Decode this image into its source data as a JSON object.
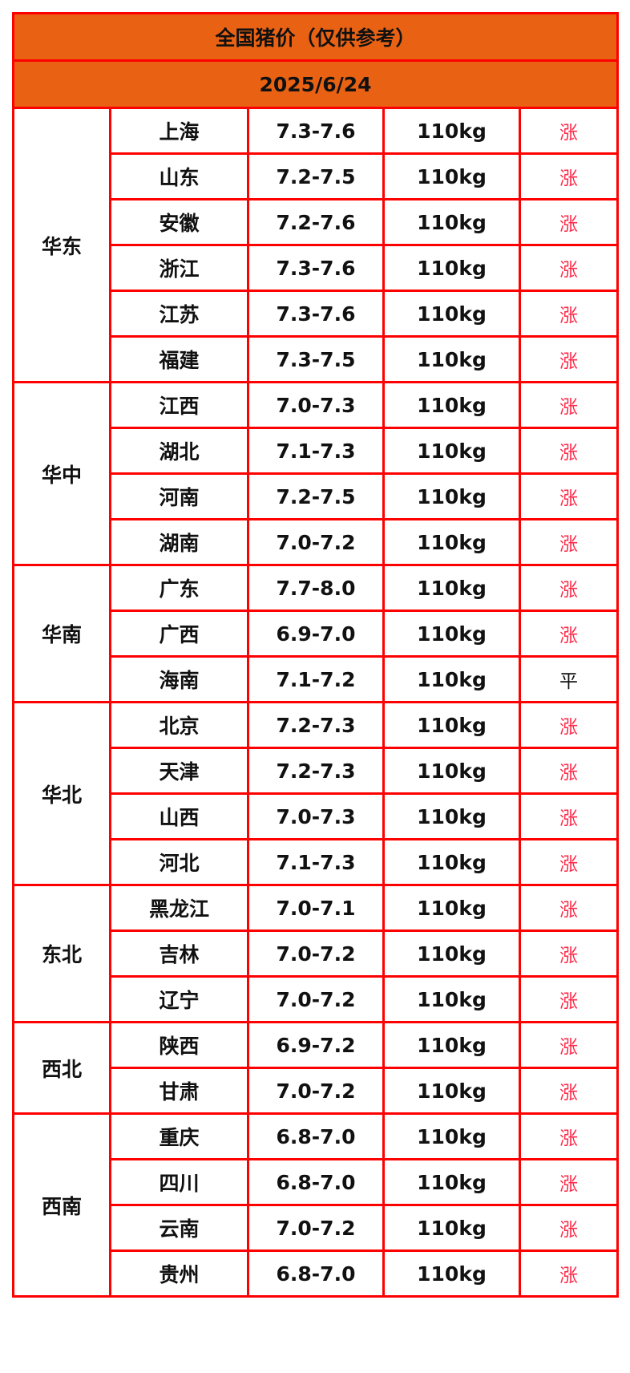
{
  "title": "全国猪价（仅供参考）",
  "date": "2025/6/24",
  "colors": {
    "header_bg": "#e96214",
    "border": "#ff0000",
    "up": "#ff2a4a"
  },
  "regions": [
    {
      "name": "华东",
      "rows": [
        {
          "province": "上海",
          "price": "7.3-7.6",
          "weight": "110kg",
          "trend": "涨"
        },
        {
          "province": "山东",
          "price": "7.2-7.5",
          "weight": "110kg",
          "trend": "涨"
        },
        {
          "province": "安徽",
          "price": "7.2-7.6",
          "weight": "110kg",
          "trend": "涨"
        },
        {
          "province": "浙江",
          "price": "7.3-7.6",
          "weight": "110kg",
          "trend": "涨"
        },
        {
          "province": "江苏",
          "price": "7.3-7.6",
          "weight": "110kg",
          "trend": "涨"
        },
        {
          "province": "福建",
          "price": "7.3-7.5",
          "weight": "110kg",
          "trend": "涨"
        }
      ]
    },
    {
      "name": "华中",
      "rows": [
        {
          "province": "江西",
          "price": "7.0-7.3",
          "weight": "110kg",
          "trend": "涨"
        },
        {
          "province": "湖北",
          "price": "7.1-7.3",
          "weight": "110kg",
          "trend": "涨"
        },
        {
          "province": "河南",
          "price": "7.2-7.5",
          "weight": "110kg",
          "trend": "涨"
        },
        {
          "province": "湖南",
          "price": "7.0-7.2",
          "weight": "110kg",
          "trend": "涨"
        }
      ]
    },
    {
      "name": "华南",
      "rows": [
        {
          "province": "广东",
          "price": "7.7-8.0",
          "weight": "110kg",
          "trend": "涨"
        },
        {
          "province": "广西",
          "price": "6.9-7.0",
          "weight": "110kg",
          "trend": "涨"
        },
        {
          "province": "海南",
          "price": "7.1-7.2",
          "weight": "110kg",
          "trend": "平"
        }
      ]
    },
    {
      "name": "华北",
      "rows": [
        {
          "province": "北京",
          "price": "7.2-7.3",
          "weight": "110kg",
          "trend": "涨"
        },
        {
          "province": "天津",
          "price": "7.2-7.3",
          "weight": "110kg",
          "trend": "涨"
        },
        {
          "province": "山西",
          "price": "7.0-7.3",
          "weight": "110kg",
          "trend": "涨"
        },
        {
          "province": "河北",
          "price": "7.1-7.3",
          "weight": "110kg",
          "trend": "涨"
        }
      ]
    },
    {
      "name": "东北",
      "rows": [
        {
          "province": "黑龙江",
          "price": "7.0-7.1",
          "weight": "110kg",
          "trend": "涨"
        },
        {
          "province": "吉林",
          "price": "7.0-7.2",
          "weight": "110kg",
          "trend": "涨"
        },
        {
          "province": "辽宁",
          "price": "7.0-7.2",
          "weight": "110kg",
          "trend": "涨"
        }
      ]
    },
    {
      "name": "西北",
      "rows": [
        {
          "province": "陕西",
          "price": "6.9-7.2",
          "weight": "110kg",
          "trend": "涨"
        },
        {
          "province": "甘肃",
          "price": "7.0-7.2",
          "weight": "110kg",
          "trend": "涨"
        }
      ]
    },
    {
      "name": "西南",
      "rows": [
        {
          "province": "重庆",
          "price": "6.8-7.0",
          "weight": "110kg",
          "trend": "涨"
        },
        {
          "province": "四川",
          "price": "6.8-7.0",
          "weight": "110kg",
          "trend": "涨"
        },
        {
          "province": "云南",
          "price": "7.0-7.2",
          "weight": "110kg",
          "trend": "涨"
        },
        {
          "province": "贵州",
          "price": "6.8-7.0",
          "weight": "110kg",
          "trend": "涨"
        }
      ]
    }
  ]
}
